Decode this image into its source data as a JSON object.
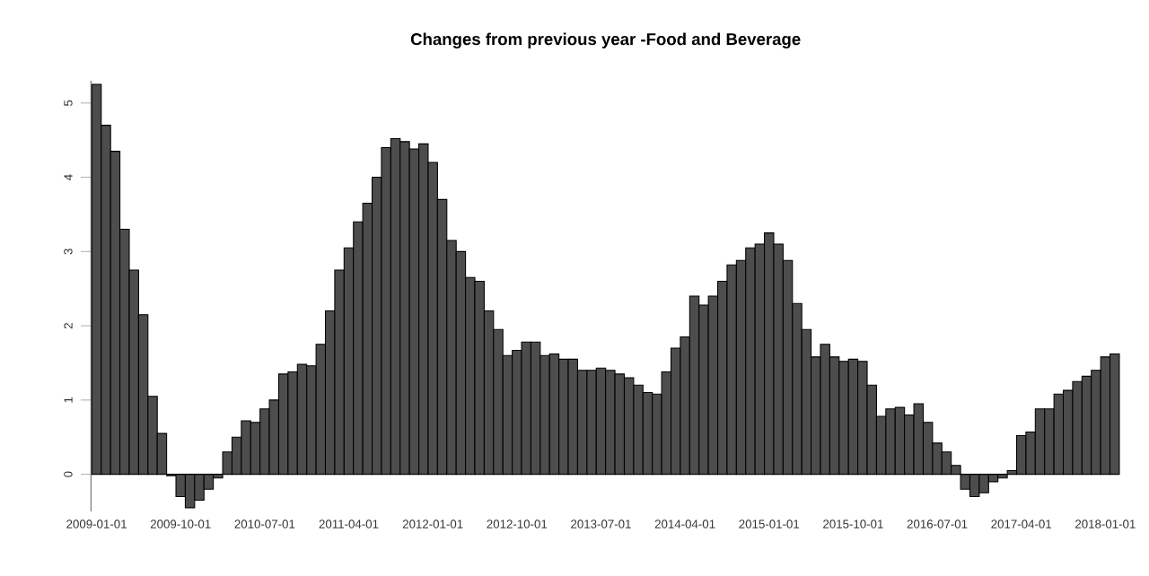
{
  "chart_data": {
    "type": "bar",
    "title": "Changes from previous year -Food and Beverage",
    "categories": [
      "2009-01-01",
      null,
      null,
      null,
      null,
      null,
      null,
      null,
      null,
      "2009-10-01",
      null,
      null,
      null,
      null,
      null,
      null,
      null,
      null,
      "2010-07-01",
      null,
      null,
      null,
      null,
      null,
      null,
      null,
      null,
      "2011-04-01",
      null,
      null,
      null,
      null,
      null,
      null,
      null,
      null,
      "2012-01-01",
      null,
      null,
      null,
      null,
      null,
      null,
      null,
      null,
      "2012-10-01",
      null,
      null,
      null,
      null,
      null,
      null,
      null,
      null,
      "2013-07-01",
      null,
      null,
      null,
      null,
      null,
      null,
      null,
      null,
      "2014-04-01",
      null,
      null,
      null,
      null,
      null,
      null,
      null,
      null,
      "2015-01-01",
      null,
      null,
      null,
      null,
      null,
      null,
      null,
      null,
      "2015-10-01",
      null,
      null,
      null,
      null,
      null,
      null,
      null,
      null,
      "2016-07-01",
      null,
      null,
      null,
      null,
      null,
      null,
      null,
      null,
      "2017-04-01",
      null,
      null,
      null,
      null,
      null,
      null,
      null,
      null,
      "2018-01-01",
      null
    ],
    "values": [
      5.25,
      4.7,
      4.35,
      3.3,
      2.75,
      2.15,
      1.05,
      0.55,
      -0.02,
      -0.3,
      -0.45,
      -0.35,
      -0.2,
      -0.05,
      0.3,
      0.5,
      0.72,
      0.7,
      0.88,
      1.0,
      1.35,
      1.38,
      1.48,
      1.46,
      1.75,
      2.2,
      2.75,
      3.05,
      3.4,
      3.65,
      4.0,
      4.4,
      4.52,
      4.48,
      4.38,
      4.45,
      4.2,
      3.7,
      3.15,
      3.0,
      2.65,
      2.6,
      2.2,
      1.95,
      1.6,
      1.67,
      1.78,
      1.78,
      1.6,
      1.62,
      1.55,
      1.55,
      1.4,
      1.4,
      1.43,
      1.4,
      1.35,
      1.3,
      1.2,
      1.1,
      1.08,
      1.38,
      1.7,
      1.85,
      2.4,
      2.28,
      2.4,
      2.6,
      2.82,
      2.88,
      3.05,
      3.1,
      3.25,
      3.1,
      2.88,
      2.3,
      1.95,
      1.58,
      1.75,
      1.58,
      1.52,
      1.55,
      1.52,
      1.2,
      0.78,
      0.88,
      0.9,
      0.8,
      0.95,
      0.7,
      0.42,
      0.3,
      0.12,
      -0.2,
      -0.3,
      -0.25,
      -0.1,
      -0.05,
      0.05,
      0.52,
      0.57,
      0.88,
      0.88,
      1.08,
      1.13,
      1.25,
      1.32,
      1.4,
      1.58,
      1.62
    ],
    "color": "#4d4d4d",
    "ylim": [
      -0.5,
      5.3
    ],
    "yticks": [
      0,
      1,
      2,
      3,
      4,
      5
    ],
    "grid": false
  }
}
